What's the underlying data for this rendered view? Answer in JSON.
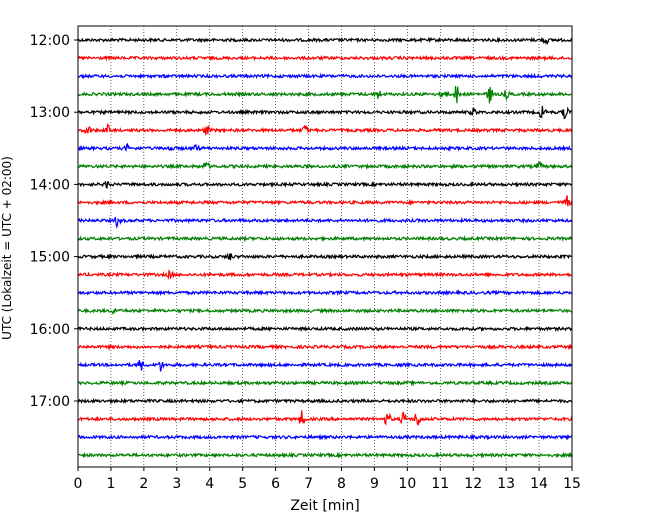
{
  "chart_data": {
    "type": "line",
    "title": "",
    "xlabel": "Zeit  [min]",
    "ylabel": "UTC (Lokalzeit = UTC + 02:00)",
    "xlim": [
      0,
      15
    ],
    "x_ticks": [
      "0",
      "1",
      "2",
      "3",
      "4",
      "5",
      "6",
      "7",
      "8",
      "9",
      "10",
      "11",
      "12",
      "13",
      "14",
      "15"
    ],
    "y_ticks": [
      "12:00",
      "13:00",
      "14:00",
      "15:00",
      "16:00",
      "17:00"
    ],
    "grid": "vertical dotted",
    "colors": [
      "#000000",
      "#ff0000",
      "#0000ff",
      "#008000"
    ],
    "traces": [
      {
        "start": "12:00",
        "color": "#000000",
        "events": [
          {
            "t": 14.2,
            "amp": 4
          }
        ]
      },
      {
        "start": "12:15",
        "color": "#ff0000",
        "events": []
      },
      {
        "start": "12:30",
        "color": "#0000ff",
        "events": []
      },
      {
        "start": "12:45",
        "color": "#008000",
        "events": [
          {
            "t": 9.1,
            "amp": 6
          },
          {
            "t": 11.1,
            "amp": 6
          },
          {
            "t": 11.5,
            "amp": 10
          },
          {
            "t": 12.5,
            "amp": 9
          },
          {
            "t": 13.0,
            "amp": 4
          }
        ]
      },
      {
        "start": "13:00",
        "color": "#000000",
        "events": [
          {
            "t": 12.0,
            "amp": 4
          },
          {
            "t": 14.1,
            "amp": 8
          },
          {
            "t": 14.8,
            "amp": 7
          }
        ]
      },
      {
        "start": "13:15",
        "color": "#ff0000",
        "events": [
          {
            "t": 0.3,
            "amp": 5
          },
          {
            "t": 0.9,
            "amp": 5
          },
          {
            "t": 3.9,
            "amp": 5
          },
          {
            "t": 6.9,
            "amp": 5
          }
        ]
      },
      {
        "start": "13:30",
        "color": "#0000ff",
        "events": [
          {
            "t": 1.5,
            "amp": 3
          },
          {
            "t": 2.8,
            "amp": 3
          },
          {
            "t": 3.6,
            "amp": 3
          }
        ]
      },
      {
        "start": "13:45",
        "color": "#008000",
        "events": [
          {
            "t": 3.9,
            "amp": 4
          },
          {
            "t": 14.0,
            "amp": 4
          }
        ]
      },
      {
        "start": "14:00",
        "color": "#000000",
        "events": [
          {
            "t": 0.9,
            "amp": 4
          }
        ]
      },
      {
        "start": "14:15",
        "color": "#ff0000",
        "events": [
          {
            "t": 14.85,
            "amp": 6
          }
        ]
      },
      {
        "start": "14:30",
        "color": "#0000ff",
        "events": [
          {
            "t": 1.2,
            "amp": 6
          }
        ]
      },
      {
        "start": "14:45",
        "color": "#008000",
        "events": []
      },
      {
        "start": "15:00",
        "color": "#000000",
        "events": [
          {
            "t": 4.6,
            "amp": 4
          }
        ]
      },
      {
        "start": "15:15",
        "color": "#ff0000",
        "events": [
          {
            "t": 2.8,
            "amp": 4
          }
        ]
      },
      {
        "start": "15:30",
        "color": "#0000ff",
        "events": []
      },
      {
        "start": "15:45",
        "color": "#008000",
        "events": [
          {
            "t": 1.1,
            "amp": 3
          }
        ]
      },
      {
        "start": "16:00",
        "color": "#000000",
        "events": []
      },
      {
        "start": "16:15",
        "color": "#ff0000",
        "events": []
      },
      {
        "start": "16:30",
        "color": "#0000ff",
        "events": [
          {
            "t": 1.9,
            "amp": 6
          },
          {
            "t": 2.5,
            "amp": 6
          }
        ]
      },
      {
        "start": "16:45",
        "color": "#008000",
        "events": []
      },
      {
        "start": "17:00",
        "color": "#000000",
        "events": []
      },
      {
        "start": "17:15",
        "color": "#ff0000",
        "events": [
          {
            "t": 6.8,
            "amp": 8
          },
          {
            "t": 9.4,
            "amp": 8
          },
          {
            "t": 9.9,
            "amp": 8
          },
          {
            "t": 10.3,
            "amp": 9
          }
        ]
      },
      {
        "start": "17:30",
        "color": "#0000ff",
        "events": []
      },
      {
        "start": "17:45",
        "color": "#008000",
        "events": []
      }
    ]
  }
}
